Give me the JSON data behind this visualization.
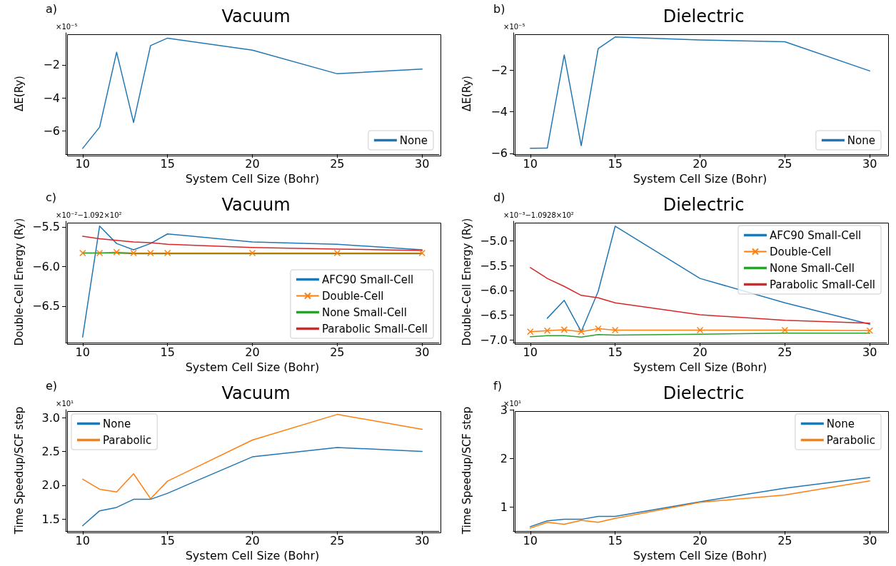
{
  "chart_data": [
    {
      "type": "line",
      "title": "Vacuum",
      "xlabel": "System Cell Size (Bohr)",
      "ylabel": "ΔE(Ry)",
      "annotations": [
        "a)",
        "×10⁻⁵"
      ],
      "x": [
        10,
        11,
        12,
        13,
        14,
        15,
        20,
        25,
        30
      ],
      "xlim": [
        9,
        31
      ],
      "xticks": [
        10,
        15,
        20,
        25,
        30
      ],
      "ylim": [
        -7.39,
        -0.07
      ],
      "yticks": [
        -6,
        -4,
        -2
      ],
      "grid": false,
      "legend": "bottom right",
      "marker": "none",
      "line_style": "solid",
      "series": [
        {
          "name": "None",
          "color": "#1f77b4",
          "values": [
            -7.04,
            -5.76,
            -1.24,
            -5.48,
            -0.84,
            -0.39,
            -1.11,
            -2.54,
            -2.25
          ]
        }
      ]
    },
    {
      "type": "line",
      "title": "Dielectric",
      "xlabel": "System Cell Size (Bohr)",
      "ylabel": "ΔE(Ry)",
      "annotations": [
        "b)",
        "×10⁻⁵"
      ],
      "x": [
        10,
        11,
        12,
        13,
        14,
        15,
        20,
        25,
        30
      ],
      "xlim": [
        9,
        31
      ],
      "xticks": [
        10,
        15,
        20,
        25,
        30
      ],
      "ylim": [
        -6.04,
        -0.21
      ],
      "yticks": [
        -6,
        -4,
        -2
      ],
      "grid": false,
      "legend": "bottom right",
      "marker": "none",
      "line_style": "solid",
      "series": [
        {
          "name": "None",
          "color": "#1f77b4",
          "values": [
            -5.76,
            -5.75,
            -1.27,
            -5.63,
            -0.97,
            -0.41,
            -0.55,
            -0.64,
            -2.04
          ]
        }
      ]
    },
    {
      "type": "line",
      "title": "Vacuum",
      "xlabel": "System Cell Size (Bohr)",
      "ylabel": "Double-Cell Energy (Ry)",
      "annotations": [
        "c)",
        "×10⁻²−1.092×10²"
      ],
      "x": [
        10,
        11,
        12,
        13,
        14,
        15,
        20,
        25,
        30
      ],
      "xlim": [
        9,
        31
      ],
      "xticks": [
        10,
        15,
        20,
        25,
        30
      ],
      "ylim": [
        -6.96,
        -5.43
      ],
      "yticks": [
        -6.5,
        {
          "value": -6.0,
          "label": "−6.0"
        },
        -5.5
      ],
      "grid": false,
      "legend": "bottom right",
      "marker": "none",
      "line_style": "solid",
      "series": [
        {
          "name": "AFC90 Small-Cell",
          "color": "#1f77b4",
          "values": [
            -6.89,
            -5.49,
            -5.71,
            -5.79,
            -5.71,
            -5.59,
            -5.69,
            -5.72,
            -5.79
          ]
        },
        {
          "name": "Double-Cell",
          "color": "#ff7f0e",
          "marker": "cross",
          "values": [
            -5.83,
            -5.83,
            -5.82,
            -5.83,
            -5.83,
            -5.83,
            -5.83,
            -5.83,
            -5.83
          ]
        },
        {
          "name": "None Small-Cell",
          "color": "#2ca02c",
          "values": [
            -5.83,
            -5.83,
            -5.83,
            -5.84,
            -5.84,
            -5.84,
            -5.84,
            -5.84,
            -5.84
          ]
        },
        {
          "name": "Parabolic Small-Cell",
          "color": "#d62728",
          "values": [
            -5.62,
            -5.65,
            -5.67,
            -5.69,
            -5.7,
            -5.72,
            -5.76,
            -5.78,
            -5.8
          ]
        }
      ]
    },
    {
      "type": "line",
      "title": "Dielectric",
      "xlabel": "System Cell Size (Bohr)",
      "ylabel": "Double-Cell Energy (Ry)",
      "annotations": [
        "d)",
        "×10⁻³−1.0928×10²"
      ],
      "x": [
        10,
        11,
        12,
        13,
        14,
        15,
        20,
        25,
        30
      ],
      "xlim": [
        9,
        31
      ],
      "xticks": [
        10,
        15,
        20,
        25,
        30
      ],
      "ylim": [
        -7.05,
        -4.61
      ],
      "yticks": [
        {
          "value": -7.0,
          "label": "−7.0"
        },
        -6.5,
        {
          "value": -6.0,
          "label": "−6.0"
        },
        -5.5,
        {
          "value": -5.0,
          "label": "−5.0"
        }
      ],
      "grid": false,
      "legend": "top right",
      "marker": "none",
      "line_style": "solid",
      "series": [
        {
          "name": "AFC90 Small-Cell",
          "color": "#1f77b4",
          "values": [
            null,
            -6.56,
            -6.2,
            -6.83,
            -6.02,
            -4.71,
            -5.76,
            -6.25,
            -6.68
          ]
        },
        {
          "name": "Double-Cell",
          "color": "#ff7f0e",
          "marker": "cross",
          "values": [
            -6.83,
            -6.81,
            -6.79,
            -6.83,
            -6.77,
            -6.8,
            -6.8,
            -6.8,
            -6.81
          ]
        },
        {
          "name": "None Small-Cell",
          "color": "#2ca02c",
          "values": [
            -6.93,
            -6.91,
            -6.91,
            -6.94,
            -6.89,
            -6.9,
            -6.88,
            -6.86,
            -6.86
          ]
        },
        {
          "name": "Parabolic Small-Cell",
          "color": "#d62728",
          "values": [
            -5.54,
            -5.76,
            -5.92,
            -6.1,
            -6.15,
            -6.25,
            -6.49,
            -6.6,
            -6.66
          ]
        }
      ]
    },
    {
      "type": "line",
      "title": "Vacuum",
      "xlabel": "System Cell Size (Bohr)",
      "ylabel": "Time Speedup/SCF step",
      "annotations": [
        "e)",
        "×10¹"
      ],
      "x": [
        10,
        11,
        12,
        13,
        14,
        15,
        20,
        25,
        30
      ],
      "xlim": [
        9,
        31
      ],
      "xticks": [
        10,
        15,
        20,
        25,
        30
      ],
      "ylim": [
        1.32,
        3.12
      ],
      "yticks": [
        1.5,
        {
          "value": 2.0,
          "label": "2.0"
        },
        2.5,
        {
          "value": 3.0,
          "label": "3.0"
        }
      ],
      "grid": false,
      "legend": "top left",
      "marker": "none",
      "line_style": "solid",
      "series": [
        {
          "name": "None",
          "color": "#1f77b4",
          "values": [
            1.4,
            1.62,
            1.67,
            1.79,
            1.79,
            1.88,
            2.42,
            2.56,
            2.5
          ]
        },
        {
          "name": "Parabolic",
          "color": "#ff7f0e",
          "values": [
            2.09,
            1.94,
            1.9,
            2.17,
            1.8,
            2.06,
            2.67,
            3.05,
            2.83
          ]
        }
      ]
    },
    {
      "type": "line",
      "title": "Dielectric",
      "xlabel": "System Cell Size (Bohr)",
      "ylabel": "Time Speedup/SCF step",
      "annotations": [
        "f)",
        "×10¹"
      ],
      "x": [
        10,
        11,
        12,
        13,
        14,
        15,
        20,
        25,
        30
      ],
      "xlim": [
        9,
        31
      ],
      "xticks": [
        10,
        15,
        20,
        25,
        30
      ],
      "ylim": [
        0.51,
        3.0
      ],
      "yticks": [
        1,
        2,
        3
      ],
      "grid": false,
      "legend": "top right",
      "marker": "none",
      "line_style": "solid",
      "series": [
        {
          "name": "None",
          "color": "#1f77b4",
          "values": [
            0.6,
            0.72,
            0.75,
            0.75,
            0.81,
            0.81,
            1.11,
            1.39,
            1.61
          ]
        },
        {
          "name": "Parabolic",
          "color": "#ff7f0e",
          "values": [
            0.57,
            0.69,
            0.65,
            0.73,
            0.69,
            0.77,
            1.1,
            1.25,
            1.54
          ]
        }
      ]
    }
  ]
}
